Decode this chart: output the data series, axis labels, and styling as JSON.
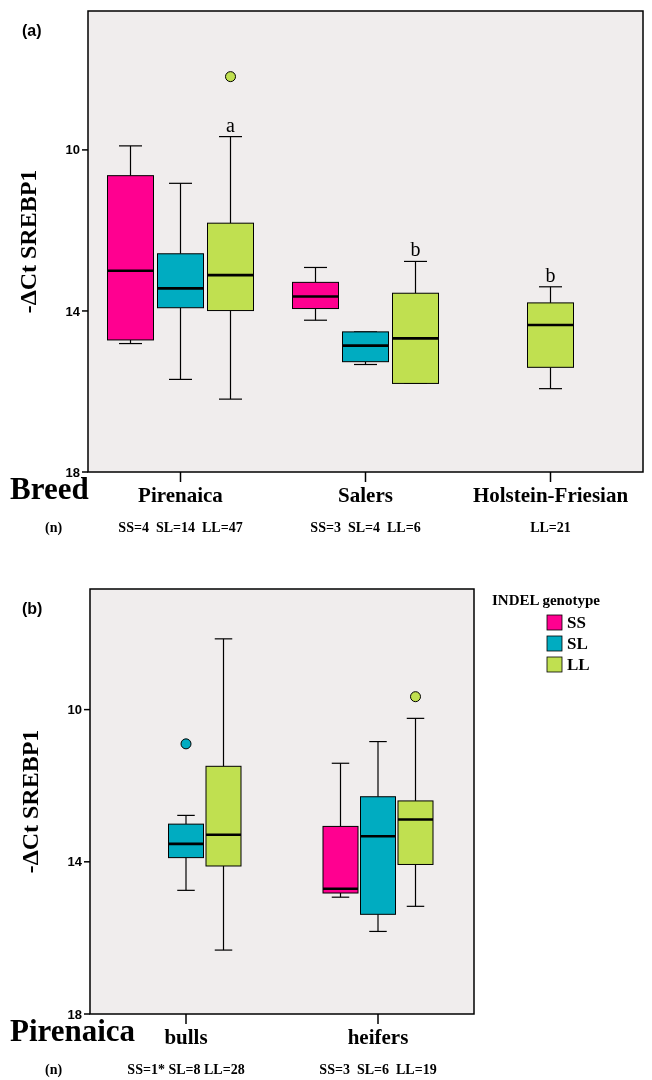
{
  "chart_data": [
    {
      "type": "box",
      "title": "(a)",
      "ylabel": "-ΔCt SREBP1",
      "xlabel": "Breed",
      "categories": [
        "Pirenaica",
        "Salers",
        "Holstein-Friesian"
      ],
      "ylim": [
        18,
        6.55
      ],
      "yticks": [
        10,
        14,
        18
      ],
      "grid": false,
      "legend": false,
      "series": [
        {
          "color": "#ff0090",
          "boxes": [
            {
              "low": 9.9,
              "q1": 10.64,
              "median": 13.0,
              "q3": 14.72,
              "high": 14.81
            },
            {
              "low": 12.92,
              "q1": 13.29,
              "median": 13.64,
              "q3": 13.94,
              "high": 14.23
            },
            null
          ]
        },
        {
          "color": "#00acc1",
          "boxes": [
            {
              "low": 10.83,
              "q1": 12.58,
              "median": 13.44,
              "q3": 13.92,
              "high": 15.7
            },
            {
              "low": 14.52,
              "q1": 14.52,
              "median": 14.86,
              "q3": 15.26,
              "high": 15.33
            },
            null
          ]
        },
        {
          "color": "#c0e050",
          "boxes": [
            {
              "low": 9.67,
              "q1": 11.82,
              "median": 13.11,
              "q3": 13.99,
              "high": 16.19,
              "outliers": [
                8.18
              ]
            },
            {
              "low": 12.77,
              "q1": 13.56,
              "median": 14.68,
              "q3": 15.8,
              "high": 15.8
            },
            {
              "low": 13.4,
              "q1": 13.8,
              "median": 14.35,
              "q3": 15.4,
              "high": 15.93
            }
          ]
        }
      ],
      "annotations": [
        "(n)",
        "SS=4  SL=14  LL=47",
        "SS=3  SL=4  LL=6",
        "LL=21",
        "a",
        "b",
        "b"
      ]
    },
    {
      "type": "box",
      "title": "(b)",
      "ylabel": "-ΔCt SREBP1",
      "xlabel": "Pirenaica",
      "categories": [
        "bulls",
        "heifers"
      ],
      "ylim": [
        18,
        6.83
      ],
      "yticks": [
        10,
        14,
        18
      ],
      "grid": false,
      "legend": "top right",
      "legend_title": "INDEL genotype",
      "series": [
        {
          "name": "SS",
          "color": "#ff0090",
          "boxes": [
            null,
            {
              "low": 11.41,
              "q1": 13.07,
              "median": 14.71,
              "q3": 14.82,
              "high": 14.93
            }
          ]
        },
        {
          "name": "SL",
          "color": "#00acc1",
          "boxes": [
            {
              "low": 12.78,
              "q1": 13.01,
              "median": 13.53,
              "q3": 13.89,
              "high": 14.75,
              "outliers": [
                10.9
              ]
            },
            {
              "low": 10.84,
              "q1": 12.29,
              "median": 13.33,
              "q3": 15.38,
              "high": 15.83
            }
          ]
        },
        {
          "name": "LL",
          "color": "#c0e050",
          "boxes": [
            {
              "low": 8.14,
              "q1": 11.49,
              "median": 13.29,
              "q3": 14.11,
              "high": 16.32
            },
            {
              "low": 10.23,
              "q1": 12.4,
              "median": 12.89,
              "q3": 14.07,
              "high": 15.17,
              "outliers": [
                9.66
              ]
            }
          ]
        }
      ],
      "annotations": [
        "(n)",
        "SS=1* SL=8 LL=28",
        "SS=3  SL=6  LL=19"
      ]
    }
  ]
}
